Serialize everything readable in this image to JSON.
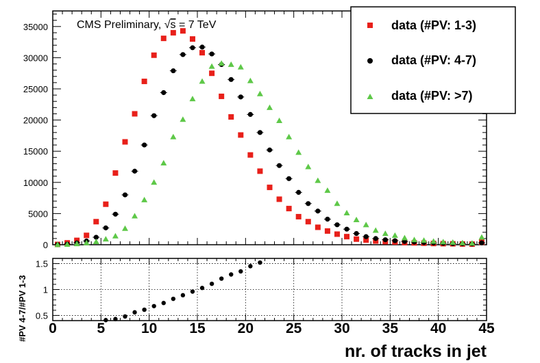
{
  "chart_data": {
    "type": "scatter",
    "title": "CMS Preliminary, √s = 7 TeV",
    "title_parts": {
      "prefix": "CMS Preliminary, ",
      "root": "√",
      "var": "s",
      "suffix": " = 7 TeV"
    },
    "xlabel": "nr. of tracks in jet",
    "ylabel_ratio": "#PV 4-7/#PV 1-3",
    "xlim": [
      0,
      45
    ],
    "ylim": [
      0,
      37500
    ],
    "ratio_ylim": [
      0.4,
      1.6
    ],
    "x_ticks": [
      "0",
      "5",
      "10",
      "15",
      "20",
      "25",
      "30",
      "35",
      "40",
      "45"
    ],
    "y_ticks": [
      "0",
      "5000",
      "10000",
      "15000",
      "20000",
      "25000",
      "30000",
      "35000"
    ],
    "ratio_y_ticks": [
      "0.5",
      "1",
      "1.5"
    ],
    "x": [
      0.5,
      1.5,
      2.5,
      3.5,
      4.5,
      5.5,
      6.5,
      7.5,
      8.5,
      9.5,
      10.5,
      11.5,
      12.5,
      13.5,
      14.5,
      15.5,
      16.5,
      17.5,
      18.5,
      19.5,
      20.5,
      21.5,
      22.5,
      23.5,
      24.5,
      25.5,
      26.5,
      27.5,
      28.5,
      29.5,
      30.5,
      31.5,
      32.5,
      33.5,
      34.5,
      35.5,
      36.5,
      37.5,
      38.5,
      39.5,
      40.5,
      41.5,
      42.5,
      43.5,
      44.5
    ],
    "series": [
      {
        "name": "data (#PV: 1-3)",
        "color": "#e8201a",
        "marker": "square",
        "values": [
          50,
          300,
          700,
          1500,
          3700,
          6500,
          11500,
          16500,
          21000,
          26200,
          30400,
          33100,
          34000,
          34300,
          33000,
          30800,
          27500,
          23800,
          20500,
          17600,
          14400,
          11800,
          9200,
          7300,
          5800,
          4500,
          3700,
          2800,
          2200,
          1700,
          1300,
          900,
          750,
          600,
          500,
          430,
          350,
          300,
          250,
          200,
          170,
          150,
          120,
          100,
          400
        ]
      },
      {
        "name": "data (#PV: 4-7)",
        "color": "#000000",
        "marker": "circle",
        "values": [
          20,
          100,
          300,
          600,
          1200,
          2700,
          4900,
          8000,
          11800,
          16000,
          20700,
          24400,
          27900,
          30500,
          31600,
          31700,
          30600,
          28900,
          26500,
          23700,
          20900,
          18000,
          15200,
          12700,
          10600,
          8400,
          6600,
          5400,
          4100,
          3200,
          2500,
          1800,
          1300,
          1000,
          800,
          650,
          520,
          430,
          340,
          280,
          230,
          190,
          160,
          130,
          300
        ]
      },
      {
        "name": "data (#PV: >7)",
        "color": "#5ec848",
        "marker": "triangle",
        "values": [
          10,
          50,
          150,
          300,
          500,
          900,
          1400,
          2600,
          4600,
          7200,
          10000,
          13100,
          17300,
          20100,
          23400,
          26200,
          28600,
          29100,
          28900,
          28500,
          26300,
          24200,
          22000,
          19900,
          17300,
          14800,
          12500,
          10300,
          8700,
          6600,
          5100,
          4000,
          3200,
          2300,
          1800,
          1500,
          1100,
          800,
          700,
          550,
          450,
          380,
          300,
          250,
          1200
        ]
      }
    ],
    "ratio": {
      "x": [
        5.5,
        6.5,
        7.5,
        8.5,
        9.5,
        10.5,
        11.5,
        12.5,
        13.5,
        14.5,
        15.5,
        16.5,
        17.5,
        18.5,
        19.5,
        20.5,
        21.5
      ],
      "values": [
        0.41,
        0.43,
        0.48,
        0.56,
        0.61,
        0.68,
        0.74,
        0.82,
        0.89,
        0.96,
        1.03,
        1.11,
        1.21,
        1.29,
        1.35,
        1.45,
        1.52
      ]
    },
    "legend_position": "top-right",
    "grid_ratio": true,
    "grid_main": false
  }
}
